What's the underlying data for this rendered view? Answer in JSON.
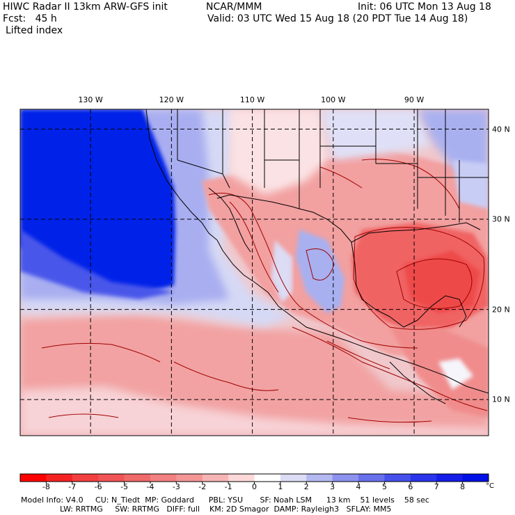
{
  "header": {
    "line1_left": "HIWC Radar II 13km ARW-GFS init",
    "line1_mid": "NCAR/MMM",
    "line1_right": "Init: 06 UTC Mon 13 Aug 18",
    "line2_left": "Fcst:   45 h",
    "line2_right": "Valid: 03 UTC Wed 15 Aug 18 (20 PDT Tue 14 Aug 18)",
    "field_name": "Lifted index"
  },
  "map": {
    "longitude_labels": [
      "130 W",
      "120 W",
      "110 W",
      "100 W",
      "90 W"
    ],
    "longitude_values": [
      -130,
      -120,
      -110,
      -100,
      -90
    ],
    "latitude_labels": [
      "40 N",
      "30 N",
      "20 N",
      "10 N"
    ],
    "latitude_values": [
      40,
      30,
      20,
      10
    ],
    "lon_range": [
      -138.7,
      -80.8
    ],
    "lat_range": [
      6.0,
      42.2
    ],
    "colors": {
      "ocean_stable": "#0020e8",
      "land_unstable": "#f08c8c",
      "strong_unstable": "#f04848",
      "neutral": "#fff0f0",
      "weak_stable": "#c8cdf5",
      "contour": "#a00000",
      "boundary": "#000000"
    }
  },
  "colorbar": {
    "tick_labels": [
      "-8",
      "-7",
      "-6",
      "-5",
      "-4",
      "-3",
      "-2",
      "-1",
      "0",
      "1",
      "2",
      "3",
      "4",
      "5",
      "6",
      "7",
      "8"
    ],
    "tick_values": [
      -8,
      -7,
      -6,
      -5,
      -4,
      -3,
      -2,
      -1,
      0,
      1,
      2,
      3,
      4,
      5,
      6,
      7,
      8
    ],
    "unit": "°C",
    "colors": [
      "#ff0000",
      "#f52222",
      "#f23f3f",
      "#f05454",
      "#f06a6a",
      "#f28080",
      "#f49696",
      "#f7b4b4",
      "#fcd8d8",
      "#ffffff",
      "#dcdcf5",
      "#b4b9f2",
      "#8c92ee",
      "#6870ec",
      "#4650ea",
      "#2a34ea",
      "#141ee8",
      "#0010e6"
    ]
  },
  "footer": {
    "line1": "Model Info: V4.0     CU: N_Tiedt  MP: Goddard      PBL: YSU       SF: Noah LSM      13 km    51 levels    58 sec",
    "line2": "                LW: RRTMG     SW: RRTMG   DIFF: full    KM: 2D Smagor  DAMP: Rayleigh3   SFLAY: MM5"
  }
}
